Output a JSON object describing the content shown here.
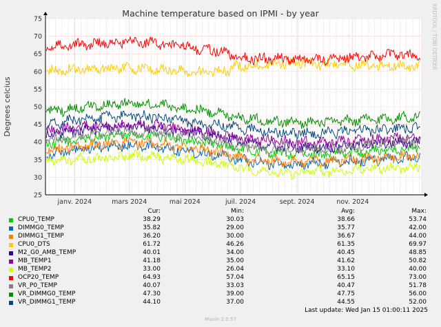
{
  "chart_data": {
    "type": "line",
    "title": "Machine temperature based on IPMI - by year",
    "ylabel": "Degrees celcius",
    "side_label": "RRDTOOL / TOBI OETIKER",
    "ylim": [
      25,
      75
    ],
    "yticks": [
      25,
      30,
      35,
      40,
      45,
      50,
      55,
      60,
      65,
      70,
      75
    ],
    "xlim": [
      "2023-11-30",
      "2025-01-15"
    ],
    "xticks": [
      {
        "date": "2024-01-01",
        "label": "janv. 2024"
      },
      {
        "date": "2024-03-01",
        "label": "mars 2024"
      },
      {
        "date": "2024-05-01",
        "label": "mai 2024"
      },
      {
        "date": "2024-07-01",
        "label": "juil. 2024"
      },
      {
        "date": "2024-09-01",
        "label": "sept. 2024"
      },
      {
        "date": "2024-11-01",
        "label": "nov. 2024"
      }
    ],
    "series": [
      {
        "name": "CPU0_TEMP",
        "color": "#00cc00",
        "values": [
          [
            "2023-12-01",
            39.5
          ],
          [
            "2024-01-01",
            40.5
          ],
          [
            "2024-02-01",
            41.5
          ],
          [
            "2024-03-01",
            42
          ],
          [
            "2024-04-01",
            41.5
          ],
          [
            "2024-05-01",
            40.5
          ],
          [
            "2024-06-01",
            39.5
          ],
          [
            "2024-07-01",
            38
          ],
          [
            "2024-08-01",
            37
          ],
          [
            "2024-09-01",
            36.5
          ],
          [
            "2024-10-01",
            36.5
          ],
          [
            "2024-11-01",
            37
          ],
          [
            "2024-12-01",
            37.5
          ],
          [
            "2025-01-14",
            38.3
          ]
        ]
      },
      {
        "name": "DIMMG0_TEMP",
        "color": "#0066b3",
        "values": [
          [
            "2023-12-01",
            36.5
          ],
          [
            "2024-01-01",
            37.5
          ],
          [
            "2024-02-01",
            38.5
          ],
          [
            "2024-03-01",
            39
          ],
          [
            "2024-04-01",
            38.5
          ],
          [
            "2024-05-01",
            37.5
          ],
          [
            "2024-06-01",
            36.5
          ],
          [
            "2024-07-01",
            35
          ],
          [
            "2024-08-01",
            34
          ],
          [
            "2024-09-01",
            33.5
          ],
          [
            "2024-10-01",
            34
          ],
          [
            "2024-11-01",
            34.5
          ],
          [
            "2024-12-01",
            35
          ],
          [
            "2025-01-14",
            35.8
          ]
        ]
      },
      {
        "name": "DIMMG1_TEMP",
        "color": "#ff8000",
        "values": [
          [
            "2023-12-01",
            37.5
          ],
          [
            "2024-01-01",
            38.5
          ],
          [
            "2024-02-01",
            39.5
          ],
          [
            "2024-03-01",
            40
          ],
          [
            "2024-04-01",
            39.5
          ],
          [
            "2024-05-01",
            38.5
          ],
          [
            "2024-06-01",
            37.5
          ],
          [
            "2024-07-01",
            35.5
          ],
          [
            "2024-08-01",
            34.5
          ],
          [
            "2024-09-01",
            34.5
          ],
          [
            "2024-10-01",
            34.5
          ],
          [
            "2024-11-01",
            35
          ],
          [
            "2024-12-01",
            35.5
          ],
          [
            "2025-01-14",
            36.2
          ]
        ]
      },
      {
        "name": "CPU0_DTS",
        "color": "#ffcc00",
        "values": [
          [
            "2023-12-01",
            60
          ],
          [
            "2024-01-01",
            60.5
          ],
          [
            "2024-02-01",
            61
          ],
          [
            "2024-03-01",
            61
          ],
          [
            "2024-04-01",
            60.5
          ],
          [
            "2024-05-01",
            60
          ],
          [
            "2024-06-01",
            59.5
          ],
          [
            "2024-07-01",
            61.5
          ],
          [
            "2024-08-01",
            62
          ],
          [
            "2024-09-01",
            62.5
          ],
          [
            "2024-10-01",
            62
          ],
          [
            "2024-11-01",
            62
          ],
          [
            "2024-12-01",
            61.5
          ],
          [
            "2025-01-14",
            61.7
          ]
        ]
      },
      {
        "name": "M2_G0_AMB_TEMP",
        "color": "#330099",
        "values": [
          [
            "2023-12-01",
            42
          ],
          [
            "2024-01-01",
            43
          ],
          [
            "2024-02-01",
            44
          ],
          [
            "2024-03-01",
            44.5
          ],
          [
            "2024-04-01",
            44
          ],
          [
            "2024-05-01",
            43
          ],
          [
            "2024-06-01",
            42
          ],
          [
            "2024-07-01",
            40
          ],
          [
            "2024-08-01",
            39
          ],
          [
            "2024-09-01",
            38.5
          ],
          [
            "2024-10-01",
            38.5
          ],
          [
            "2024-11-01",
            39
          ],
          [
            "2024-12-01",
            39.5
          ],
          [
            "2025-01-14",
            40
          ]
        ]
      },
      {
        "name": "MB_TEMP1",
        "color": "#990099",
        "values": [
          [
            "2023-12-01",
            43.5
          ],
          [
            "2024-01-01",
            44
          ],
          [
            "2024-02-01",
            45
          ],
          [
            "2024-03-01",
            45
          ],
          [
            "2024-04-01",
            44.5
          ],
          [
            "2024-05-01",
            43.5
          ],
          [
            "2024-06-01",
            42.5
          ],
          [
            "2024-07-01",
            41
          ],
          [
            "2024-08-01",
            40.5
          ],
          [
            "2024-09-01",
            40
          ],
          [
            "2024-10-01",
            40
          ],
          [
            "2024-11-01",
            40.5
          ],
          [
            "2024-12-01",
            41
          ],
          [
            "2025-01-14",
            41.2
          ]
        ]
      },
      {
        "name": "MB_TEMP2",
        "color": "#ccff00",
        "values": [
          [
            "2023-12-01",
            34.5
          ],
          [
            "2024-01-01",
            35
          ],
          [
            "2024-02-01",
            35.5
          ],
          [
            "2024-03-01",
            36
          ],
          [
            "2024-04-01",
            35.5
          ],
          [
            "2024-05-01",
            35
          ],
          [
            "2024-06-01",
            34
          ],
          [
            "2024-07-01",
            32.5
          ],
          [
            "2024-08-01",
            31.5
          ],
          [
            "2024-09-01",
            31
          ],
          [
            "2024-10-01",
            31.5
          ],
          [
            "2024-11-01",
            32
          ],
          [
            "2024-12-01",
            32.5
          ],
          [
            "2025-01-14",
            33
          ]
        ]
      },
      {
        "name": "OCP20_TEMP",
        "color": "#ff0000",
        "values": [
          [
            "2023-12-01",
            67
          ],
          [
            "2024-01-01",
            67.5
          ],
          [
            "2024-02-01",
            68
          ],
          [
            "2024-03-01",
            68.5
          ],
          [
            "2024-04-01",
            68
          ],
          [
            "2024-05-01",
            67
          ],
          [
            "2024-06-01",
            66
          ],
          [
            "2024-07-01",
            64
          ],
          [
            "2024-08-01",
            63.5
          ],
          [
            "2024-09-01",
            63.5
          ],
          [
            "2024-10-01",
            63.5
          ],
          [
            "2024-11-01",
            64
          ],
          [
            "2024-12-01",
            64.5
          ],
          [
            "2025-01-14",
            64.9
          ]
        ]
      },
      {
        "name": "VR_P0_TEMP",
        "color": "#808080",
        "values": [
          [
            "2023-12-01",
            40.5
          ],
          [
            "2024-01-01",
            41.5
          ],
          [
            "2024-02-01",
            42.5
          ],
          [
            "2024-03-01",
            43
          ],
          [
            "2024-04-01",
            42.5
          ],
          [
            "2024-05-01",
            41.5
          ],
          [
            "2024-06-01",
            40.5
          ],
          [
            "2024-07-01",
            39
          ],
          [
            "2024-08-01",
            38
          ],
          [
            "2024-09-01",
            37.5
          ],
          [
            "2024-10-01",
            38
          ],
          [
            "2024-11-01",
            38.5
          ],
          [
            "2024-12-01",
            39.5
          ],
          [
            "2025-01-14",
            40.1
          ]
        ]
      },
      {
        "name": "VR_DIMMG0_TEMP",
        "color": "#008f00",
        "values": [
          [
            "2023-12-01",
            48.5
          ],
          [
            "2024-01-01",
            49.5
          ],
          [
            "2024-02-01",
            50.5
          ],
          [
            "2024-03-01",
            51
          ],
          [
            "2024-04-01",
            50.5
          ],
          [
            "2024-05-01",
            49.5
          ],
          [
            "2024-06-01",
            48.5
          ],
          [
            "2024-07-01",
            47
          ],
          [
            "2024-08-01",
            46
          ],
          [
            "2024-09-01",
            45.5
          ],
          [
            "2024-10-01",
            45.5
          ],
          [
            "2024-11-01",
            46
          ],
          [
            "2024-12-01",
            46.5
          ],
          [
            "2025-01-14",
            47.3
          ]
        ]
      },
      {
        "name": "VR_DIMMG1_TEMP",
        "color": "#00487d",
        "values": [
          [
            "2023-12-01",
            45
          ],
          [
            "2024-01-01",
            46
          ],
          [
            "2024-02-01",
            47
          ],
          [
            "2024-03-01",
            47.5
          ],
          [
            "2024-04-01",
            47
          ],
          [
            "2024-05-01",
            46
          ],
          [
            "2024-06-01",
            45
          ],
          [
            "2024-07-01",
            44
          ],
          [
            "2024-08-01",
            43
          ],
          [
            "2024-09-01",
            42.5
          ],
          [
            "2024-10-01",
            42.5
          ],
          [
            "2024-11-01",
            43
          ],
          [
            "2024-12-01",
            43.5
          ],
          [
            "2025-01-14",
            44.1
          ]
        ]
      }
    ]
  },
  "legend": {
    "headers": {
      "cur": "Cur:",
      "min": "Min:",
      "avg": "Avg:",
      "max": "Max:"
    },
    "rows": [
      {
        "name": "CPU0_TEMP",
        "color": "#00cc00",
        "cur": "38.29",
        "min": "30.03",
        "avg": "38.66",
        "max": "53.74"
      },
      {
        "name": "DIMMG0_TEMP",
        "color": "#0066b3",
        "cur": "35.82",
        "min": "29.00",
        "avg": "35.77",
        "max": "42.00"
      },
      {
        "name": "DIMMG1_TEMP",
        "color": "#ff8000",
        "cur": "36.20",
        "min": "30.00",
        "avg": "36.67",
        "max": "44.00"
      },
      {
        "name": "CPU0_DTS",
        "color": "#ffcc00",
        "cur": "61.72",
        "min": "46.26",
        "avg": "61.35",
        "max": "69.97"
      },
      {
        "name": "M2_G0_AMB_TEMP",
        "color": "#330099",
        "cur": "40.01",
        "min": "34.00",
        "avg": "40.45",
        "max": "48.85"
      },
      {
        "name": "MB_TEMP1",
        "color": "#990099",
        "cur": "41.18",
        "min": "35.00",
        "avg": "41.62",
        "max": "50.82"
      },
      {
        "name": "MB_TEMP2",
        "color": "#ccff00",
        "cur": "33.00",
        "min": "26.04",
        "avg": "33.10",
        "max": "40.00"
      },
      {
        "name": "OCP20_TEMP",
        "color": "#ff0000",
        "cur": "64.93",
        "min": "57.04",
        "avg": "65.15",
        "max": "73.00"
      },
      {
        "name": "VR_P0_TEMP",
        "color": "#808080",
        "cur": "40.07",
        "min": "33.03",
        "avg": "40.47",
        "max": "51.78"
      },
      {
        "name": "VR_DIMMG0_TEMP",
        "color": "#008f00",
        "cur": "47.30",
        "min": "39.00",
        "avg": "47.75",
        "max": "56.00"
      },
      {
        "name": "VR_DIMMG1_TEMP",
        "color": "#00487d",
        "cur": "44.10",
        "min": "37.00",
        "avg": "44.55",
        "max": "52.00"
      }
    ]
  },
  "last_update": "Last update: Wed Jan 15 01:00:11 2025",
  "footer": "Munin 2.0.57"
}
